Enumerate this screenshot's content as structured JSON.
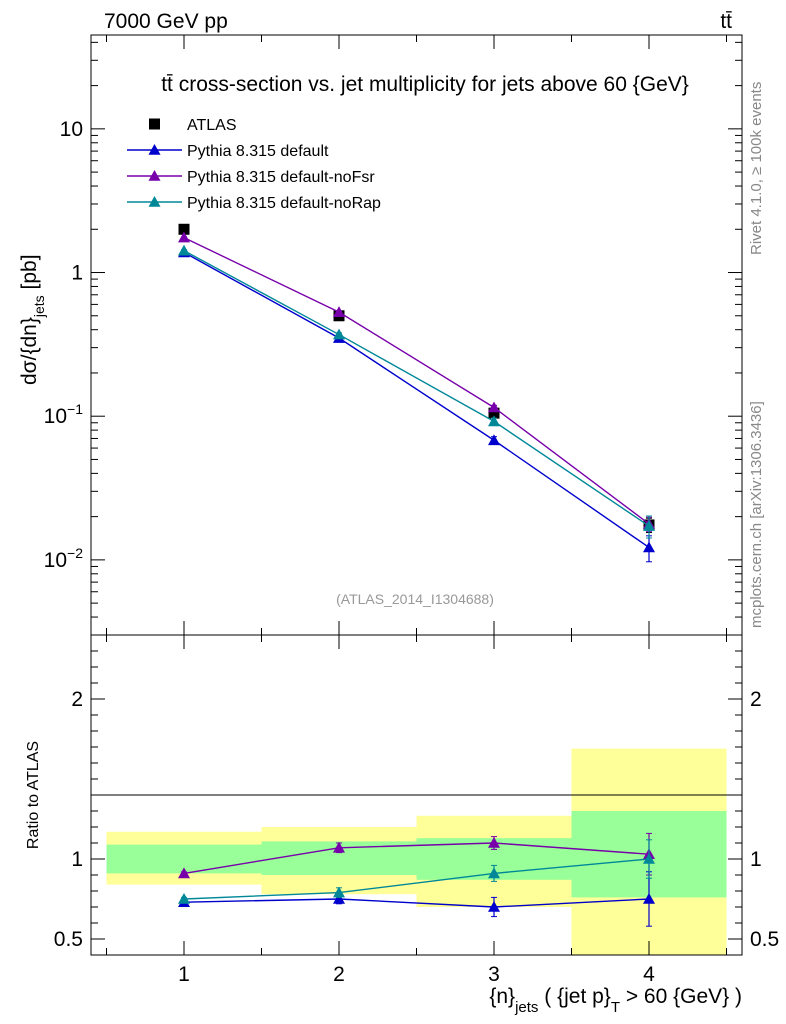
{
  "header": {
    "energy_label": "7000 GeV pp",
    "process_label": "tt̄"
  },
  "side_labels": {
    "rivet": "Rivet 4.1.0, ≥ 100k events",
    "mcplots": "mcplots.cern.ch [arXiv:1306.3436]"
  },
  "chart_data": [
    {
      "type": "line",
      "panel": "main",
      "title": "tt̄ cross-section vs. jet multiplicity for jets above 60 {GeV}",
      "ylabel": "dσ/{dn}_{jets} [pb]",
      "yscale": "log",
      "ylim": [
        0.003,
        45
      ],
      "xlim": [
        0.4,
        4.6
      ],
      "watermark": "(ATLAS_2014_I1304688)",
      "y_ticks": [
        {
          "value": 10,
          "label": "10"
        },
        {
          "value": 1,
          "label": "1"
        },
        {
          "value": 0.1,
          "label": "10^-1",
          "base": "10",
          "exp": "−1"
        },
        {
          "value": 0.01,
          "label": "10^-2",
          "base": "10",
          "exp": "−2"
        }
      ],
      "series": [
        {
          "name": "ATLAS",
          "color": "#000000",
          "marker": "square",
          "x": [
            1,
            2,
            3,
            4
          ],
          "y": [
            2.0,
            0.5,
            0.105,
            0.0175
          ],
          "err": [
            0.05,
            0.02,
            0.005,
            0.002
          ]
        },
        {
          "name": "Pythia 8.315 default",
          "color": "#0000cc",
          "marker": "triangle",
          "x": [
            1,
            2,
            3,
            4
          ],
          "y": [
            1.38,
            0.35,
            0.068,
            0.0122
          ],
          "err": [
            0.02,
            0.01,
            0.004,
            0.0025
          ]
        },
        {
          "name": "Pythia 8.315 default-noFsr",
          "color": "#7700aa",
          "marker": "triangle",
          "x": [
            1,
            2,
            3,
            4
          ],
          "y": [
            1.75,
            0.53,
            0.115,
            0.0178
          ],
          "err": [
            0.02,
            0.01,
            0.004,
            0.002
          ]
        },
        {
          "name": "Pythia 8.315 default-noRap",
          "color": "#008899",
          "marker": "triangle",
          "x": [
            1,
            2,
            3,
            4
          ],
          "y": [
            1.42,
            0.37,
            0.092,
            0.0172
          ],
          "err": [
            0.02,
            0.01,
            0.005,
            0.003
          ]
        }
      ]
    },
    {
      "type": "line",
      "panel": "ratio",
      "ylabel": "Ratio to ATLAS",
      "xlabel": "{n}_{jets} ( {jet p}_T > 60 {GeV} )",
      "ylim": [
        0.4,
        2.4
      ],
      "xlim": [
        0.4,
        4.6
      ],
      "y_ticks": [
        0.5,
        1,
        2
      ],
      "x_ticks": [
        1,
        2,
        3,
        4
      ],
      "bands": [
        {
          "x_low": 0.5,
          "x_high": 1.5,
          "inner": [
            0.91,
            1.09
          ],
          "outer": [
            0.84,
            1.17
          ]
        },
        {
          "x_low": 1.5,
          "x_high": 2.5,
          "inner": [
            0.9,
            1.11
          ],
          "outer": [
            0.78,
            1.2
          ]
        },
        {
          "x_low": 2.5,
          "x_high": 3.5,
          "inner": [
            0.87,
            1.13
          ],
          "outer": [
            0.7,
            1.27
          ]
        },
        {
          "x_low": 3.5,
          "x_high": 4.5,
          "inner": [
            0.76,
            1.3
          ],
          "outer": [
            0.4,
            1.69
          ]
        }
      ],
      "series": [
        {
          "name": "Pythia 8.315 default",
          "color": "#0000cc",
          "x": [
            1,
            2,
            3,
            4
          ],
          "y": [
            0.73,
            0.75,
            0.7,
            0.75
          ],
          "err": [
            0.01,
            0.03,
            0.06,
            0.17
          ]
        },
        {
          "name": "Pythia 8.315 default-noFsr",
          "color": "#7700aa",
          "x": [
            1,
            2,
            3,
            4
          ],
          "y": [
            0.91,
            1.07,
            1.1,
            1.03
          ],
          "err": [
            0.01,
            0.03,
            0.04,
            0.13
          ]
        },
        {
          "name": "Pythia 8.315 default-noRap",
          "color": "#008899",
          "x": [
            1,
            2,
            3,
            4
          ],
          "y": [
            0.75,
            0.79,
            0.91,
            1.0
          ],
          "err": [
            0.01,
            0.03,
            0.05,
            0.12
          ]
        }
      ]
    }
  ]
}
